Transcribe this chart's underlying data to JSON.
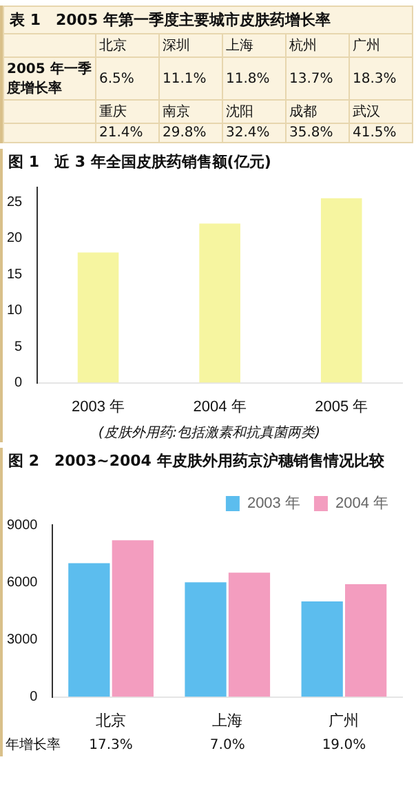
{
  "chart_data": [
    {
      "type": "other",
      "title": "表 1　2005 年第一季度主要城市皮肤药增长率",
      "ylabel": "2005 年一季度增长率",
      "categories": [
        "北京",
        "深圳",
        "上海",
        "杭州",
        "广州",
        "重庆",
        "南京",
        "沈阳",
        "成都",
        "武汉"
      ],
      "value_labels": [
        "6.5%",
        "11.1%",
        "11.8%",
        "13.7%",
        "18.3%",
        "21.4%",
        "29.8%",
        "32.4%",
        "35.8%",
        "41.5%"
      ]
    },
    {
      "type": "bar",
      "title": "图 1　近 3 年全国皮肤药销售额(亿元)",
      "categories": [
        "2003 年",
        "2004 年",
        "2005 年"
      ],
      "values": [
        18,
        22,
        25.5
      ],
      "color": "#f6f5a0",
      "ylim": [
        0,
        27
      ],
      "yticks": [
        0,
        5,
        10,
        15,
        20,
        25
      ],
      "grid": false,
      "annotations": [
        "(皮肤外用药:包括激素和抗真菌两类)"
      ]
    },
    {
      "type": "bar",
      "title": "图 2　2003~2004 年皮肤外用药京沪穗销售情况比较",
      "categories": [
        "北京",
        "上海",
        "广州"
      ],
      "series": [
        {
          "name": "2003 年",
          "color": "#5cbdee",
          "values": [
            7000,
            6000,
            5000
          ]
        },
        {
          "name": "2004 年",
          "color": "#f39dbf",
          "values": [
            8200,
            6500,
            5900
          ]
        }
      ],
      "ylim": [
        0,
        9000
      ],
      "yticks": [
        0,
        3000,
        6000,
        9000
      ],
      "grid": false,
      "legend": "top right",
      "annotations": [
        "年增长率",
        "17.3%",
        "7.0%",
        "19.0%"
      ]
    }
  ]
}
